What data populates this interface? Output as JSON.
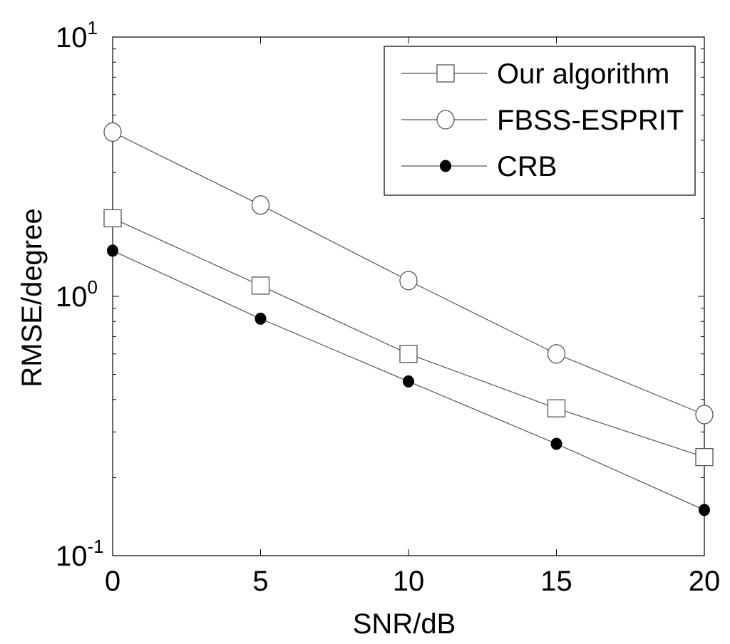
{
  "chart_data": {
    "type": "line",
    "xlabel": "SNR/dB",
    "ylabel": "RMSE/degree",
    "x": [
      0,
      5,
      10,
      15,
      20
    ],
    "xlim": [
      0,
      20
    ],
    "ylim": [
      0.1,
      10
    ],
    "yscale": "log",
    "x_ticks": [
      0,
      5,
      10,
      15,
      20
    ],
    "y_ticks": [
      {
        "value": 0.1,
        "base": "10",
        "exp": "-1"
      },
      {
        "value": 1,
        "base": "10",
        "exp": "0"
      },
      {
        "value": 10,
        "base": "10",
        "exp": "1"
      }
    ],
    "grid": false,
    "legend_position": "top-right",
    "series": [
      {
        "name": "Our algorithm",
        "marker": "square",
        "values": [
          2.0,
          1.1,
          0.6,
          0.37,
          0.24
        ]
      },
      {
        "name": "FBSS-ESPRIT",
        "marker": "circle",
        "values": [
          4.3,
          2.25,
          1.15,
          0.6,
          0.35
        ]
      },
      {
        "name": "CRB",
        "marker": "filled-circle",
        "values": [
          1.5,
          0.82,
          0.47,
          0.27,
          0.15
        ]
      }
    ]
  }
}
